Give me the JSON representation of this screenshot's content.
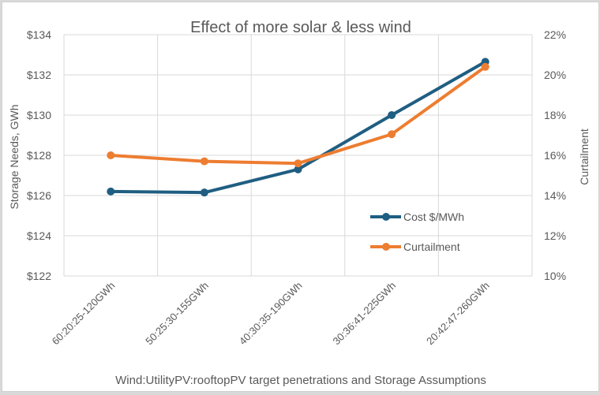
{
  "chart_data": {
    "type": "line",
    "title": "Effect of more solar & less wind",
    "xlabel": "Wind:UtilityPV:rooftopPV target penetrations and Storage Assumptions",
    "ylabel": "Storage Needs, GWh",
    "y2label": "Curtailment",
    "categories": [
      "60:20:25-120GWh",
      "50:25:30-155GWh",
      "40:30:35-190GWh",
      "30:36:41-225GWh",
      "20:42:47-260GWh"
    ],
    "ylim": [
      122,
      134
    ],
    "y2lim": [
      10,
      22
    ],
    "yticks": [
      "$122",
      "$124",
      "$126",
      "$128",
      "$130",
      "$132",
      "$134"
    ],
    "y2ticks": [
      "10%",
      "12%",
      "14%",
      "16%",
      "18%",
      "20%",
      "22%"
    ],
    "grid": true,
    "legend_position": "inside-right",
    "series": [
      {
        "name": "Cost $/MWh",
        "axis": "left",
        "color": "#1f5e82",
        "values": [
          126.2,
          126.15,
          127.3,
          130.0,
          132.65
        ]
      },
      {
        "name": "Curtailment",
        "axis": "right",
        "color": "#ed7d31",
        "values": [
          16.0,
          15.7,
          15.6,
          17.05,
          20.4
        ]
      }
    ]
  }
}
